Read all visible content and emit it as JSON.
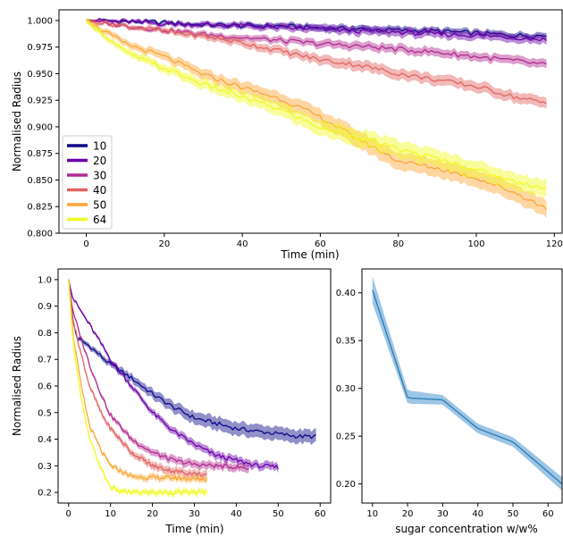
{
  "chart_data": [
    {
      "id": "top",
      "type": "line",
      "title": "",
      "xlabel": "Time (min)",
      "ylabel": "Normalised Radius",
      "xlim": [
        -7,
        122
      ],
      "ylim": [
        0.8,
        1.01
      ],
      "xticks": [
        0,
        20,
        40,
        60,
        80,
        100,
        120
      ],
      "yticks": [
        0.8,
        0.825,
        0.85,
        0.875,
        0.9,
        0.925,
        0.95,
        0.975,
        1.0
      ],
      "xtick_labels": [
        "0",
        "20",
        "40",
        "60",
        "80",
        "100",
        "120"
      ],
      "ytick_labels": [
        "0.800",
        "0.825",
        "0.850",
        "0.875",
        "0.900",
        "0.925",
        "0.950",
        "0.975",
        "1.000"
      ],
      "grid": false,
      "legend_position": "lower-left",
      "x": [
        0,
        10,
        20,
        30,
        40,
        50,
        60,
        70,
        80,
        90,
        100,
        110,
        118
      ],
      "series": [
        {
          "name": "10",
          "color": "#0d0887",
          "band": 0.003,
          "values": [
            1.0,
            0.999,
            0.998,
            0.996,
            0.995,
            0.995,
            0.993,
            0.992,
            0.991,
            0.99,
            0.988,
            0.986,
            0.986
          ]
        },
        {
          "name": "20",
          "color": "#6a00a8",
          "band": 0.004,
          "values": [
            1.0,
            0.999,
            0.997,
            0.996,
            0.995,
            0.993,
            0.992,
            0.99,
            0.989,
            0.987,
            0.986,
            0.984,
            0.982
          ]
        },
        {
          "name": "30",
          "color": "#b12a90",
          "band": 0.004,
          "values": [
            1.0,
            0.995,
            0.991,
            0.987,
            0.984,
            0.981,
            0.978,
            0.976,
            0.973,
            0.97,
            0.966,
            0.962,
            0.958
          ]
        },
        {
          "name": "40",
          "color": "#e16462",
          "band": 0.005,
          "values": [
            1.0,
            0.995,
            0.99,
            0.985,
            0.979,
            0.971,
            0.963,
            0.958,
            0.95,
            0.944,
            0.938,
            0.928,
            0.922
          ]
        },
        {
          "name": "50",
          "color": "#fca636",
          "band": 0.008,
          "values": [
            1.0,
            0.978,
            0.966,
            0.949,
            0.937,
            0.926,
            0.909,
            0.888,
            0.868,
            0.861,
            0.852,
            0.838,
            0.823
          ]
        },
        {
          "name": "64",
          "color": "#f0f921",
          "band": 0.008,
          "values": [
            1.0,
            0.97,
            0.955,
            0.94,
            0.928,
            0.916,
            0.899,
            0.89,
            0.879,
            0.87,
            0.86,
            0.848,
            0.843
          ]
        }
      ]
    },
    {
      "id": "bottom-left",
      "type": "line",
      "title": "",
      "xlabel": "Time (min)",
      "ylabel": "Normalised Radius",
      "xlim": [
        -2.5,
        62.5
      ],
      "ylim": [
        0.16,
        1.04
      ],
      "xticks": [
        0,
        10,
        20,
        30,
        40,
        50,
        60
      ],
      "yticks": [
        0.2,
        0.3,
        0.4,
        0.5,
        0.6,
        0.7,
        0.8,
        0.9,
        1.0
      ],
      "xtick_labels": [
        "0",
        "10",
        "20",
        "30",
        "40",
        "50",
        "60"
      ],
      "ytick_labels": [
        "0.2",
        "0.3",
        "0.4",
        "0.5",
        "0.6",
        "0.7",
        "0.8",
        "0.9",
        "1.0"
      ],
      "grid": false,
      "series": [
        {
          "name": "10",
          "color": "#0d0887",
          "band": 0.025,
          "x": [
            0,
            1,
            2,
            5,
            10,
            15,
            20,
            25,
            30,
            35,
            40,
            45,
            50,
            55,
            59
          ],
          "values": [
            1.0,
            0.85,
            0.78,
            0.75,
            0.68,
            0.63,
            0.57,
            0.52,
            0.48,
            0.46,
            0.44,
            0.43,
            0.42,
            0.41,
            0.41
          ]
        },
        {
          "name": "20",
          "color": "#6a00a8",
          "band": 0.015,
          "x": [
            0,
            1,
            3,
            5,
            10,
            15,
            20,
            25,
            30,
            35,
            40,
            45,
            50
          ],
          "values": [
            1.0,
            0.93,
            0.88,
            0.83,
            0.7,
            0.6,
            0.5,
            0.43,
            0.38,
            0.34,
            0.32,
            0.3,
            0.295
          ]
        },
        {
          "name": "30",
          "color": "#b12a90",
          "band": 0.015,
          "x": [
            0,
            1,
            3,
            5,
            8,
            10,
            15,
            20,
            25,
            30,
            35,
            40,
            43
          ],
          "values": [
            1.0,
            0.88,
            0.78,
            0.68,
            0.56,
            0.49,
            0.4,
            0.35,
            0.32,
            0.305,
            0.3,
            0.295,
            0.29
          ]
        },
        {
          "name": "40",
          "color": "#e16462",
          "band": 0.015,
          "x": [
            0,
            1,
            3,
            5,
            8,
            10,
            15,
            20,
            25,
            30,
            33
          ],
          "values": [
            1.0,
            0.85,
            0.72,
            0.6,
            0.49,
            0.44,
            0.35,
            0.3,
            0.28,
            0.27,
            0.265
          ]
        },
        {
          "name": "50",
          "color": "#fca636",
          "band": 0.012,
          "x": [
            0,
            1,
            3,
            5,
            8,
            10,
            15,
            20,
            25,
            30,
            33
          ],
          "values": [
            1.0,
            0.8,
            0.6,
            0.45,
            0.35,
            0.3,
            0.26,
            0.255,
            0.255,
            0.25,
            0.25
          ]
        },
        {
          "name": "64",
          "color": "#f0f921",
          "band": 0.012,
          "x": [
            0,
            1,
            3,
            5,
            8,
            10,
            12,
            15,
            20,
            25,
            30,
            33
          ],
          "values": [
            1.0,
            0.78,
            0.55,
            0.4,
            0.28,
            0.22,
            0.205,
            0.2,
            0.2,
            0.2,
            0.2,
            0.2
          ]
        }
      ]
    },
    {
      "id": "bottom-right",
      "type": "line",
      "title": "",
      "xlabel": "sugar concentration w/w%",
      "ylabel": "",
      "xlim": [
        7,
        64
      ],
      "ylim": [
        0.18,
        0.425
      ],
      "xticks": [
        10,
        20,
        30,
        40,
        50,
        60
      ],
      "yticks": [
        0.2,
        0.25,
        0.3,
        0.35,
        0.4
      ],
      "xtick_labels": [
        "10",
        "20",
        "30",
        "40",
        "50",
        "60"
      ],
      "ytick_labels": [
        "0.20",
        "0.25",
        "0.30",
        "0.35",
        "0.40"
      ],
      "grid": false,
      "series": [
        {
          "name": "",
          "color": "#1f77b4",
          "band_color": "#6aa6d6",
          "x": [
            10,
            20,
            30,
            40,
            50,
            64
          ],
          "values": [
            0.403,
            0.29,
            0.288,
            0.258,
            0.244,
            0.2
          ],
          "lower": [
            0.389,
            0.284,
            0.283,
            0.253,
            0.239,
            0.193
          ],
          "upper": [
            0.417,
            0.298,
            0.293,
            0.263,
            0.249,
            0.207
          ]
        }
      ]
    }
  ]
}
